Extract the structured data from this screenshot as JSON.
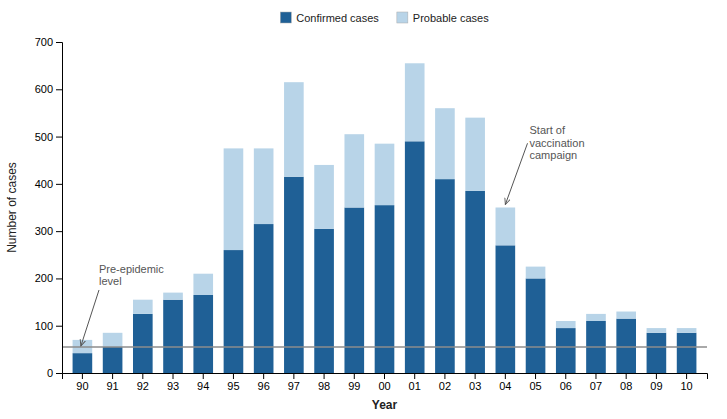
{
  "chart_data": {
    "type": "bar",
    "stacked": true,
    "categories": [
      "90",
      "91",
      "92",
      "93",
      "94",
      "95",
      "96",
      "97",
      "98",
      "99",
      "00",
      "01",
      "02",
      "03",
      "04",
      "05",
      "06",
      "07",
      "08",
      "09",
      "10"
    ],
    "series": [
      {
        "name": "Confirmed cases",
        "color": "#1F6096",
        "values": [
          42,
          55,
          125,
          155,
          165,
          260,
          315,
          415,
          305,
          350,
          355,
          490,
          410,
          385,
          270,
          200,
          95,
          110,
          115,
          85,
          85
        ]
      },
      {
        "name": "Probable cases",
        "color": "#B8D4E8",
        "values": [
          28,
          30,
          30,
          15,
          45,
          215,
          160,
          200,
          135,
          155,
          130,
          165,
          150,
          155,
          80,
          25,
          15,
          15,
          15,
          10,
          10
        ]
      }
    ],
    "xlabel": "Year",
    "ylabel": "Number of cases",
    "ylim": [
      0,
      700
    ],
    "yticks": [
      0,
      100,
      200,
      300,
      400,
      500,
      600,
      700
    ],
    "grid": false,
    "legend": "top",
    "reference_line": {
      "value": 55,
      "color": "#8C8C8C"
    },
    "annotations": [
      {
        "text": "Pre-epidemic\nlevel",
        "y": 55
      },
      {
        "text": "Start of\nvaccination\ncampaign",
        "category": "04"
      }
    ]
  }
}
